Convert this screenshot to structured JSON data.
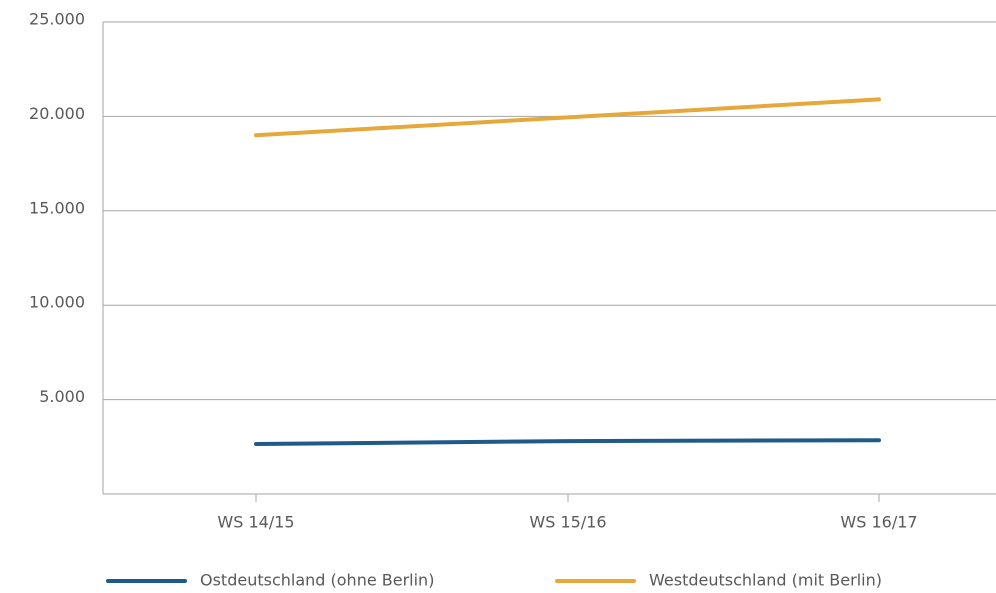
{
  "chart_data": {
    "type": "line",
    "categories": [
      "WS 14/15",
      "WS 15/16",
      "WS 16/17"
    ],
    "series": [
      {
        "name": "Ostdeutschland (ohne Berlin)",
        "color": "#1f5a8a",
        "values": [
          2650,
          2800,
          2850
        ]
      },
      {
        "name": "Westdeutschland (mit Berlin)",
        "color": "#e6a83a",
        "values": [
          19000,
          19950,
          20900
        ]
      }
    ],
    "ylim": [
      0,
      25000
    ],
    "yticks": [
      {
        "value": 5000,
        "label": "5.000"
      },
      {
        "value": 10000,
        "label": "10.000"
      },
      {
        "value": 15000,
        "label": "15.000"
      },
      {
        "value": 20000,
        "label": "20.000"
      },
      {
        "value": 25000,
        "label": "25.000"
      }
    ],
    "grid": true
  }
}
